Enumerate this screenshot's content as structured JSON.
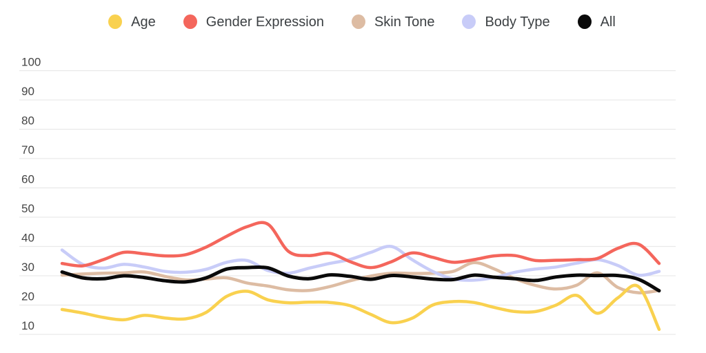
{
  "legend": {
    "items": [
      {
        "label": "Age",
        "color": "#F9D14F"
      },
      {
        "label": "Gender Expression",
        "color": "#F4665C"
      },
      {
        "label": "Skin Tone",
        "color": "#DDBCA3"
      },
      {
        "label": "Body Type",
        "color": "#C8CCF8"
      },
      {
        "label": "All",
        "color": "#0A0A0A"
      }
    ]
  },
  "chart_data": {
    "type": "line",
    "title": "",
    "smooth": true,
    "grid": true,
    "legend_position": "top",
    "x_axis": {
      "labels_visible": false,
      "point_count": 30
    },
    "y_axis": {
      "ticks": [
        100,
        90,
        80,
        70,
        60,
        50,
        40,
        30,
        20,
        10
      ],
      "range": [
        10,
        100
      ]
    },
    "series": [
      {
        "name": "Age",
        "color": "#F9D14F",
        "values": [
          18.5,
          17.3,
          15.8,
          15,
          16.5,
          15.6,
          15.3,
          17.5,
          23,
          24.7,
          21.8,
          20.8,
          21,
          20.9,
          19.8,
          16.8,
          14,
          15.5,
          20,
          21.2,
          20.9,
          19.2,
          17.8,
          17.8,
          20,
          23.3,
          17.2,
          22.5,
          26.3,
          11.7
        ]
      },
      {
        "name": "Gender Expression",
        "color": "#F4665C",
        "values": [
          34.2,
          33.4,
          35.5,
          38,
          37.5,
          36.8,
          37.2,
          39.8,
          43.5,
          46.8,
          47.6,
          38.3,
          36.9,
          37.7,
          34.8,
          32.8,
          34.8,
          37.8,
          36.3,
          34.6,
          35.5,
          36.8,
          36.9,
          35.2,
          35.3,
          35.5,
          35.9,
          39.4,
          40.8,
          34.2
        ]
      },
      {
        "name": "Skin Tone",
        "color": "#DDBCA3",
        "values": [
          30.2,
          30.6,
          30.9,
          31,
          31.3,
          29.8,
          28.6,
          28.9,
          29.3,
          27.5,
          26.5,
          25.2,
          25,
          26.3,
          28.3,
          29.9,
          30.9,
          30.8,
          30.9,
          31.5,
          34.5,
          32.3,
          29,
          26.7,
          25.5,
          26.8,
          31,
          26,
          24.2,
          25
        ]
      },
      {
        "name": "Body Type",
        "color": "#C8CCF8",
        "values": [
          38.8,
          33.9,
          32.6,
          33.9,
          33,
          31.5,
          31.2,
          32.2,
          34.6,
          35.2,
          31.8,
          30.9,
          32.6,
          34.2,
          35.6,
          38,
          40,
          35.5,
          31.5,
          28.9,
          28.5,
          29.4,
          31.2,
          32.3,
          33,
          34.3,
          35.5,
          33.5,
          30.2,
          31.5
        ]
      },
      {
        "name": "All",
        "color": "#0A0A0A",
        "values": [
          31.3,
          29.3,
          29,
          30,
          29.4,
          28.3,
          27.9,
          29.3,
          32.3,
          32.8,
          32.7,
          29.9,
          29,
          30.3,
          29.8,
          28.8,
          30.1,
          29.6,
          28.9,
          28.7,
          30.2,
          29.5,
          29,
          28.4,
          29.6,
          30.2,
          30.1,
          30.1,
          28.8,
          24.9
        ]
      }
    ]
  },
  "style": {
    "background": "#FFFFFF",
    "gridline_color": "#E9E9E9",
    "axis_label_color": "#454545",
    "legend_text_color": "#3C4043"
  }
}
